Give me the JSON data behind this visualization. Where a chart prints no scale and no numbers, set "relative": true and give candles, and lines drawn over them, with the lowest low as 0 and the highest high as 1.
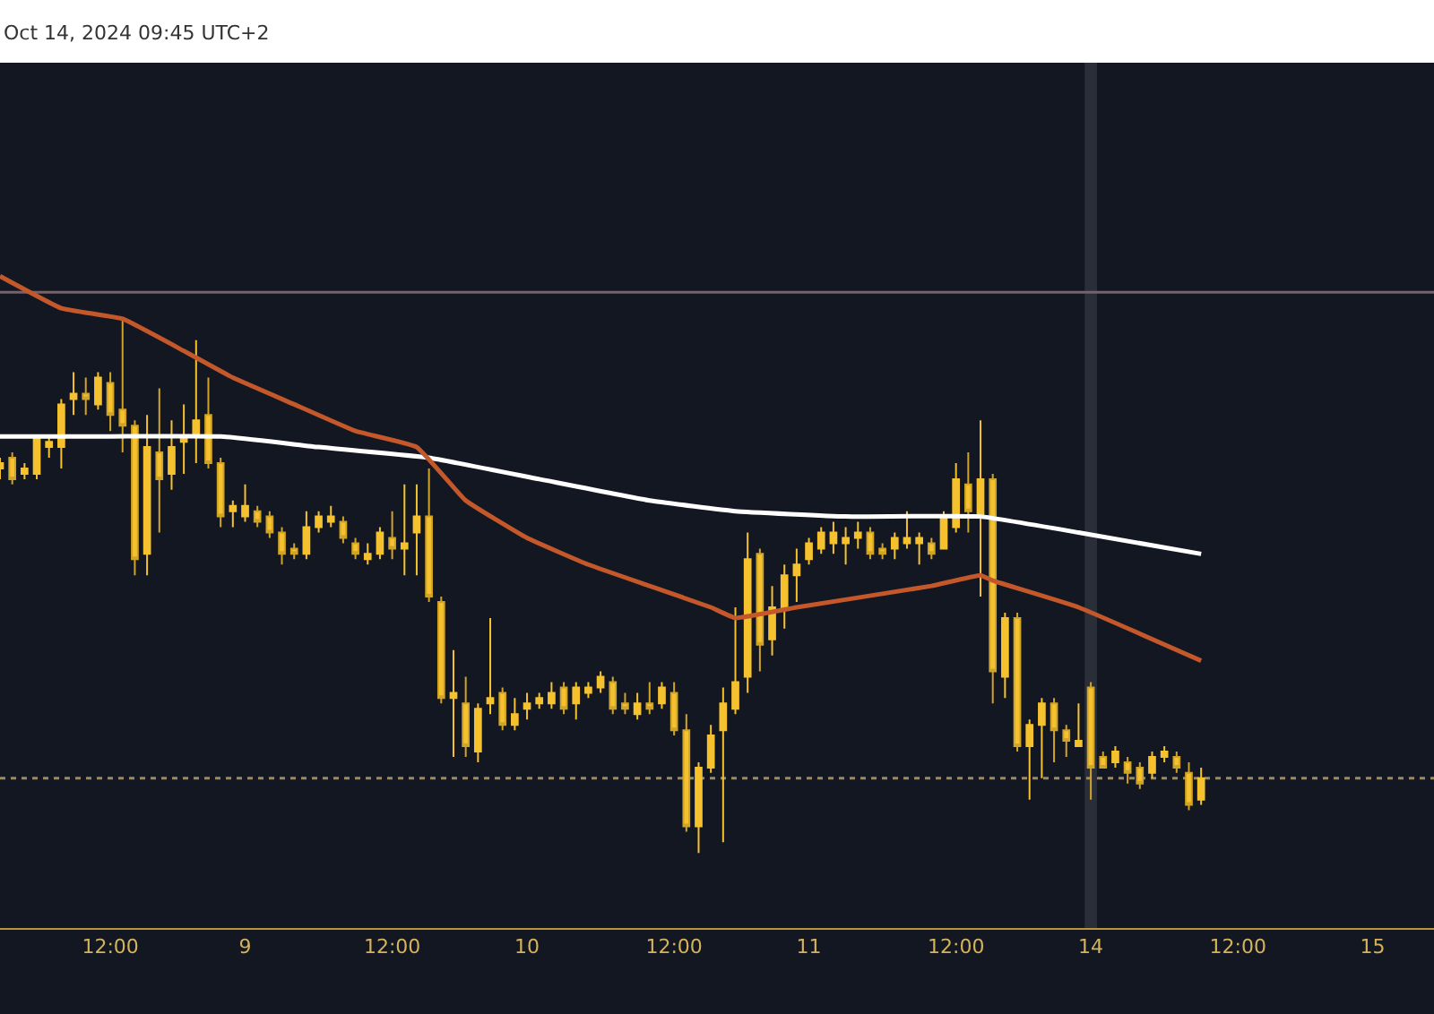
{
  "chart_data": {
    "type": "candlestick",
    "relative": true,
    "annotations": [
      "Oct 14, 2024 09:45 UTC+2"
    ],
    "categories": [
      null,
      null,
      null,
      null,
      null,
      null,
      null,
      null,
      null,
      "12:00",
      null,
      null,
      null,
      null,
      null,
      null,
      null,
      null,
      null,
      null,
      "9",
      null,
      null,
      null,
      null,
      null,
      null,
      null,
      null,
      null,
      null,
      null,
      "12:00",
      null,
      null,
      null,
      null,
      null,
      null,
      null,
      null,
      null,
      null,
      "10",
      null,
      null,
      null,
      null,
      null,
      null,
      null,
      null,
      null,
      null,
      null,
      "12:00",
      null,
      null,
      null,
      null,
      null,
      null,
      null,
      null,
      null,
      null,
      "11",
      null,
      null,
      null,
      null,
      null,
      null,
      null,
      null,
      null,
      null,
      null,
      "12:00",
      null,
      null,
      null,
      null,
      null,
      null,
      null,
      null,
      null,
      null,
      "14",
      null,
      null,
      null,
      null,
      null,
      null,
      null,
      null,
      null,
      null,
      null,
      "12:00",
      null,
      null,
      null,
      null,
      null,
      null,
      null,
      null,
      null,
      null,
      "15",
      null,
      null,
      null,
      null
    ],
    "ref_lines": [
      {
        "axis": "y",
        "value": 1.05,
        "color": "#7a6068",
        "line_style": "solid"
      },
      {
        "axis": "y",
        "value": 0.14,
        "color": "#9c8a5a",
        "line_style": "dotted"
      }
    ],
    "bands": [
      {
        "axis": "x",
        "from": "14",
        "to": "14",
        "color": "#2a2e39"
      }
    ],
    "series": [
      {
        "type": "line",
        "color": "#ffffff",
        "values": [
          0.78,
          null,
          null,
          null,
          null,
          null,
          null,
          null,
          null,
          0.78,
          null,
          null,
          null,
          null,
          null,
          null,
          null,
          null,
          0.78,
          null,
          null,
          null,
          null,
          null,
          null,
          null,
          0.76,
          null,
          null,
          null,
          null,
          null,
          null,
          null,
          null,
          0.74,
          null,
          null,
          null,
          null,
          null,
          null,
          null,
          null,
          0.7,
          null,
          null,
          null,
          null,
          null,
          null,
          null,
          null,
          0.66,
          null,
          null,
          null,
          null,
          null,
          null,
          0.64,
          null,
          null,
          null,
          null,
          null,
          null,
          null,
          null,
          0.63,
          null,
          null,
          null,
          null,
          null,
          null,
          null,
          null,
          null,
          null,
          0.63,
          null,
          null,
          null,
          null,
          null,
          null,
          null,
          0.6,
          null,
          null,
          null,
          null,
          null,
          null,
          null,
          null,
          null,
          0.56,
          null,
          null,
          null,
          null,
          null,
          null,
          null,
          null,
          null,
          null,
          null,
          null,
          null,
          null,
          null,
          null,
          null,
          null
        ]
      },
      {
        "type": "line",
        "color": "#c4582a",
        "values": [
          1.08,
          null,
          null,
          null,
          null,
          1.02,
          null,
          null,
          null,
          null,
          1.0,
          null,
          null,
          null,
          null,
          0.94,
          null,
          null,
          null,
          0.89,
          null,
          null,
          null,
          null,
          0.84,
          null,
          null,
          null,
          null,
          0.79,
          null,
          null,
          null,
          null,
          0.76,
          null,
          null,
          null,
          0.66,
          null,
          null,
          null,
          null,
          0.59,
          null,
          null,
          null,
          null,
          0.54,
          null,
          null,
          null,
          null,
          0.5,
          null,
          null,
          null,
          null,
          0.46,
          null,
          0.44,
          null,
          null,
          null,
          null,
          0.46,
          null,
          null,
          null,
          null,
          null,
          null,
          null,
          null,
          null,
          null,
          0.5,
          null,
          null,
          null,
          0.52,
          0.51,
          null,
          null,
          null,
          null,
          null,
          null,
          0.46,
          null,
          null,
          null,
          null,
          null,
          null,
          null,
          null,
          null,
          0.36,
          null,
          null,
          null,
          null,
          null,
          null,
          null,
          null,
          null,
          null,
          null,
          null,
          null,
          null,
          null,
          null,
          null,
          null
        ]
      },
      {
        "color": "#f5c12e",
        "ohlc": [
          [
            0.72,
            0.74,
            0.7,
            0.73
          ],
          [
            0.74,
            0.75,
            0.69,
            0.7
          ],
          [
            0.71,
            0.73,
            0.7,
            0.72
          ],
          [
            0.71,
            0.78,
            0.7,
            0.78
          ],
          [
            0.76,
            0.78,
            0.74,
            0.77
          ],
          [
            0.76,
            0.85,
            0.72,
            0.84
          ],
          [
            0.85,
            0.9,
            0.82,
            0.86
          ],
          [
            0.86,
            0.89,
            0.82,
            0.85
          ],
          [
            0.84,
            0.9,
            0.83,
            0.89
          ],
          [
            0.88,
            0.9,
            0.79,
            0.82
          ],
          [
            0.83,
            1.0,
            0.75,
            0.8
          ],
          [
            0.8,
            0.81,
            0.52,
            0.55
          ],
          [
            0.56,
            0.82,
            0.52,
            0.76
          ],
          [
            0.75,
            0.87,
            0.6,
            0.7
          ],
          [
            0.71,
            0.81,
            0.68,
            0.76
          ],
          [
            0.77,
            0.84,
            0.71,
            0.78
          ],
          [
            0.78,
            0.96,
            0.73,
            0.81
          ],
          [
            0.82,
            0.89,
            0.72,
            0.73
          ],
          [
            0.73,
            0.74,
            0.61,
            0.63
          ],
          [
            0.64,
            0.66,
            0.61,
            0.65
          ],
          [
            0.63,
            0.69,
            0.62,
            0.65
          ],
          [
            0.64,
            0.65,
            0.61,
            0.62
          ],
          [
            0.63,
            0.64,
            0.59,
            0.6
          ],
          [
            0.6,
            0.61,
            0.54,
            0.56
          ],
          [
            0.57,
            0.58,
            0.55,
            0.56
          ],
          [
            0.56,
            0.64,
            0.55,
            0.61
          ],
          [
            0.61,
            0.64,
            0.6,
            0.63
          ],
          [
            0.62,
            0.65,
            0.61,
            0.63
          ],
          [
            0.62,
            0.63,
            0.58,
            0.59
          ],
          [
            0.58,
            0.59,
            0.55,
            0.56
          ],
          [
            0.55,
            0.58,
            0.54,
            0.56
          ],
          [
            0.56,
            0.61,
            0.55,
            0.6
          ],
          [
            0.59,
            0.64,
            0.55,
            0.57
          ],
          [
            0.57,
            0.69,
            0.52,
            0.58
          ],
          [
            0.6,
            0.69,
            0.52,
            0.63
          ],
          [
            0.63,
            0.72,
            0.47,
            0.48
          ],
          [
            0.47,
            0.48,
            0.28,
            0.29
          ],
          [
            0.29,
            0.38,
            0.18,
            0.3
          ],
          [
            0.28,
            0.33,
            0.18,
            0.2
          ],
          [
            0.19,
            0.28,
            0.17,
            0.27
          ],
          [
            0.28,
            0.44,
            0.26,
            0.29
          ],
          [
            0.3,
            0.31,
            0.23,
            0.24
          ],
          [
            0.24,
            0.29,
            0.23,
            0.26
          ],
          [
            0.27,
            0.3,
            0.25,
            0.28
          ],
          [
            0.28,
            0.3,
            0.27,
            0.29
          ],
          [
            0.28,
            0.32,
            0.27,
            0.3
          ],
          [
            0.31,
            0.32,
            0.26,
            0.27
          ],
          [
            0.28,
            0.32,
            0.25,
            0.31
          ],
          [
            0.3,
            0.32,
            0.29,
            0.31
          ],
          [
            0.31,
            0.34,
            0.3,
            0.33
          ],
          [
            0.32,
            0.33,
            0.26,
            0.27
          ],
          [
            0.28,
            0.3,
            0.26,
            0.27
          ],
          [
            0.26,
            0.3,
            0.25,
            0.28
          ],
          [
            0.28,
            0.32,
            0.26,
            0.27
          ],
          [
            0.28,
            0.32,
            0.27,
            0.31
          ],
          [
            0.3,
            0.32,
            0.22,
            0.23
          ],
          [
            0.23,
            0.26,
            0.04,
            0.05
          ],
          [
            0.05,
            0.17,
            0.0,
            0.16
          ],
          [
            0.16,
            0.24,
            0.15,
            0.22
          ],
          [
            0.23,
            0.31,
            0.02,
            0.28
          ],
          [
            0.27,
            0.46,
            0.26,
            0.32
          ],
          [
            0.33,
            0.6,
            0.3,
            0.55
          ],
          [
            0.56,
            0.57,
            0.34,
            0.39
          ],
          [
            0.4,
            0.5,
            0.37,
            0.46
          ],
          [
            0.46,
            0.54,
            0.42,
            0.52
          ],
          [
            0.52,
            0.57,
            0.47,
            0.54
          ],
          [
            0.55,
            0.59,
            0.54,
            0.58
          ],
          [
            0.57,
            0.61,
            0.56,
            0.6
          ],
          [
            0.58,
            0.62,
            0.56,
            0.6
          ],
          [
            0.58,
            0.61,
            0.54,
            0.59
          ],
          [
            0.59,
            0.62,
            0.57,
            0.6
          ],
          [
            0.6,
            0.61,
            0.55,
            0.56
          ],
          [
            0.57,
            0.58,
            0.55,
            0.56
          ],
          [
            0.57,
            0.6,
            0.55,
            0.59
          ],
          [
            0.58,
            0.64,
            0.57,
            0.59
          ],
          [
            0.58,
            0.6,
            0.54,
            0.59
          ],
          [
            0.58,
            0.59,
            0.55,
            0.56
          ],
          [
            0.57,
            0.64,
            0.57,
            0.63
          ],
          [
            0.61,
            0.73,
            0.6,
            0.7
          ],
          [
            0.69,
            0.75,
            0.6,
            0.64
          ],
          [
            0.63,
            0.81,
            0.48,
            0.7
          ],
          [
            0.7,
            0.71,
            0.28,
            0.34
          ],
          [
            0.33,
            0.45,
            0.29,
            0.44
          ],
          [
            0.44,
            0.45,
            0.19,
            0.2
          ],
          [
            0.2,
            0.25,
            0.1,
            0.24
          ],
          [
            0.24,
            0.29,
            0.14,
            0.28
          ],
          [
            0.28,
            0.29,
            0.17,
            0.23
          ],
          [
            0.23,
            0.24,
            0.18,
            0.21
          ],
          [
            0.2,
            0.28,
            0.2,
            0.21
          ],
          [
            0.31,
            0.32,
            0.1,
            0.16
          ],
          [
            0.18,
            0.19,
            0.16,
            0.16
          ],
          [
            0.17,
            0.2,
            0.16,
            0.19
          ],
          [
            0.17,
            0.18,
            0.13,
            0.15
          ],
          [
            0.16,
            0.17,
            0.12,
            0.13
          ],
          [
            0.15,
            0.19,
            0.14,
            0.18
          ],
          [
            0.18,
            0.2,
            0.17,
            0.19
          ],
          [
            0.18,
            0.19,
            0.15,
            0.16
          ],
          [
            0.15,
            0.17,
            0.08,
            0.09
          ],
          [
            0.1,
            0.16,
            0.09,
            0.14
          ],
          null,
          null,
          null,
          null,
          null,
          null,
          null,
          null,
          null,
          null,
          null,
          null,
          null,
          null,
          null,
          null,
          null,
          null
        ]
      }
    ]
  }
}
